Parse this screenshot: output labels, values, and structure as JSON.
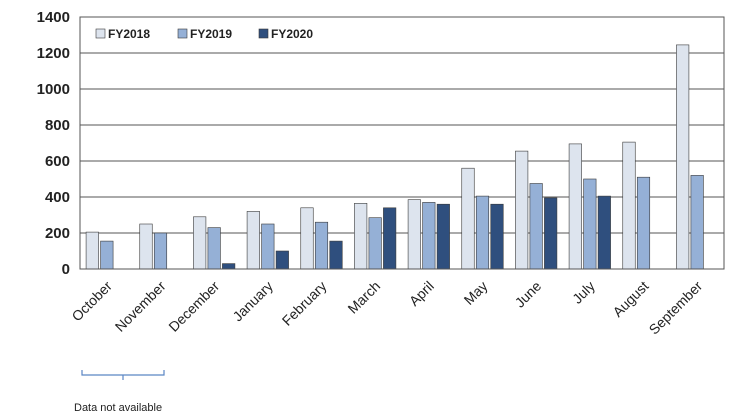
{
  "chart_data": {
    "type": "bar",
    "categories": [
      "October",
      "November",
      "December",
      "January",
      "February",
      "March",
      "April",
      "May",
      "June",
      "July",
      "August",
      "September"
    ],
    "series": [
      {
        "name": "FY2018",
        "color": "#dde4ee",
        "values": [
          205,
          250,
          290,
          320,
          340,
          365,
          385,
          560,
          655,
          695,
          705,
          1245
        ]
      },
      {
        "name": "FY2019",
        "color": "#95b0d6",
        "values": [
          155,
          200,
          230,
          250,
          260,
          285,
          370,
          405,
          475,
          500,
          510,
          520
        ]
      },
      {
        "name": "FY2020",
        "color": "#2f4f7e",
        "values": [
          null,
          null,
          30,
          100,
          155,
          340,
          360,
          360,
          395,
          405,
          null,
          null
        ]
      }
    ],
    "ylim": [
      0,
      1400
    ],
    "yticks": [
      0,
      200,
      400,
      600,
      800,
      1000,
      1200,
      1400
    ],
    "grid": true,
    "legend_position": "top-left",
    "annotation": "Data not available"
  }
}
